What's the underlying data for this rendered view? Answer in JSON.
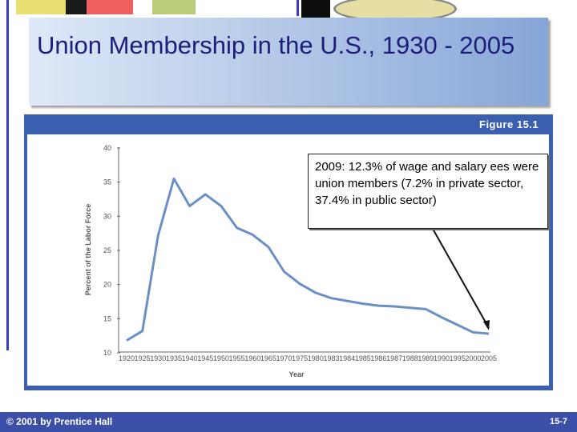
{
  "slide": {
    "title": "Union Membership in the U.S., 1930 - 2005",
    "figure_label": "Figure 15.1",
    "callout": "2009: 12.3% of wage and salary ees were union members (7.2% in private sector, 37.4% in public sector)",
    "footer_left": "© 2001 by Prentice Hall",
    "footer_right": "15-7"
  },
  "colors": {
    "line": "#6b8fc4",
    "panel": "#3a5fae",
    "title_text": "#1d1d7a",
    "footer": "#3b4fa8"
  },
  "chart_data": {
    "type": "line",
    "title": "",
    "xlabel": "Year",
    "ylabel": "Percent of the Labor Force",
    "ylim": [
      10,
      40
    ],
    "yticks": [
      "10",
      "15",
      "20",
      "25",
      "30",
      "35",
      "40"
    ],
    "categories": [
      "1920",
      "1925",
      "1930",
      "1935",
      "1940",
      "1945",
      "1950",
      "1955",
      "1960",
      "1965",
      "1970",
      "1975",
      "1980",
      "1983",
      "1984",
      "1985",
      "1986",
      "1987",
      "1988",
      "1989",
      "1990",
      "1995",
      "2000",
      "2005"
    ],
    "series": [
      {
        "values": [
          11.8,
          13.2,
          27.2,
          35.5,
          31.5,
          33.2,
          31.5,
          28.3,
          27.3,
          25.5,
          21.9,
          20.1,
          18.8,
          18.0,
          17.6,
          17.2,
          16.9,
          16.8,
          16.6,
          16.4,
          15.2,
          14.1,
          13.0,
          12.8
        ]
      }
    ],
    "grid": false,
    "legend": "none"
  }
}
